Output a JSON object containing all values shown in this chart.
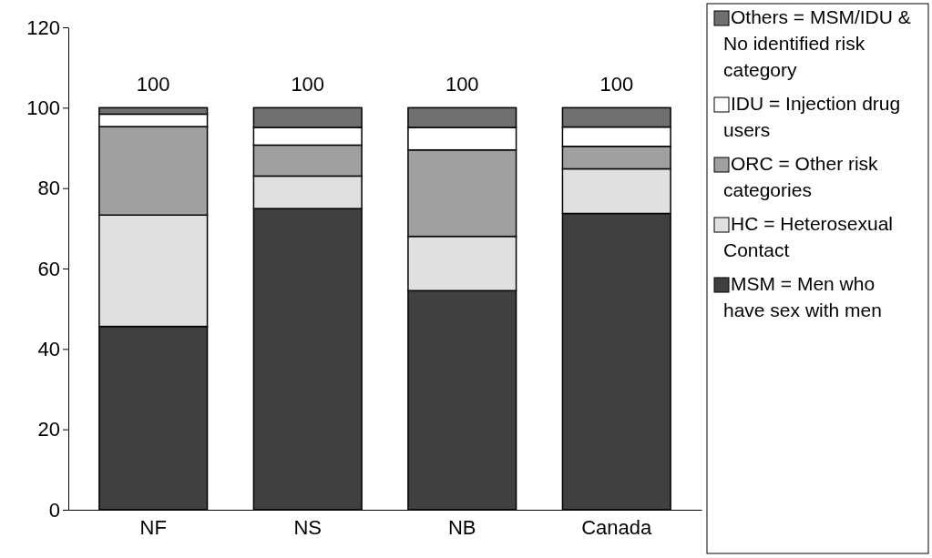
{
  "chart_data": {
    "type": "bar",
    "stacked": true,
    "categories": [
      "NF",
      "NS",
      "NB",
      "Canada"
    ],
    "series": [
      {
        "name": "MSM = Men who have sex with men",
        "color": "#404040",
        "values": [
          45.6,
          74.9,
          54.5,
          73.7
        ]
      },
      {
        "name": "HC = Heterosexual Contact",
        "color": "#e0e0e0",
        "values": [
          27.7,
          8.1,
          13.5,
          11.1
        ]
      },
      {
        "name": "ORC = Other risk categories",
        "color": "#a0a0a0",
        "values": [
          22.0,
          7.7,
          21.5,
          5.6
        ]
      },
      {
        "name": "IDU = Injection drug users",
        "color": "#ffffff",
        "values": [
          3.1,
          4.4,
          5.6,
          4.8
        ]
      },
      {
        "name": "Others = MSM/IDU & No identified risk category",
        "color": "#707070",
        "values": [
          1.6,
          4.9,
          4.9,
          4.8
        ]
      }
    ],
    "totals": [
      "100",
      "100",
      "100",
      "100"
    ],
    "ylim": [
      0,
      120
    ],
    "yticks": [
      0,
      20,
      40,
      60,
      80,
      100,
      120
    ],
    "grid": false,
    "legend": "right"
  }
}
